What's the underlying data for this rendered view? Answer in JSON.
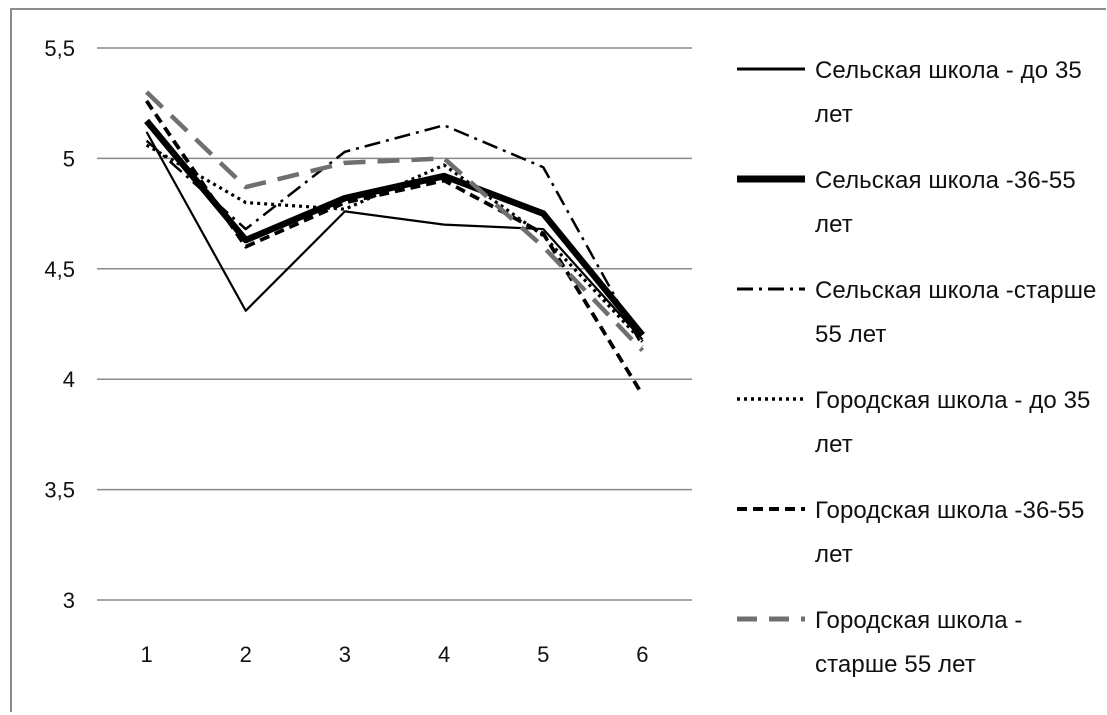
{
  "chart_data": {
    "type": "line",
    "x": [
      "1",
      "2",
      "3",
      "4",
      "5",
      "6"
    ],
    "ylim": [
      3,
      5.5
    ],
    "yticks": [
      "3",
      "3,5",
      "4",
      "4,5",
      "5",
      "5,5"
    ],
    "grid": true,
    "legend_position": "right",
    "series": [
      {
        "name": "Сельская школа - до 35 лет",
        "values": [
          5.12,
          4.31,
          4.76,
          4.7,
          4.68,
          4.18
        ],
        "color": "#000000",
        "style": "solid-thin"
      },
      {
        "name": "Сельская школа -36-55 лет",
        "values": [
          5.17,
          4.63,
          4.82,
          4.92,
          4.75,
          4.2
        ],
        "color": "#000000",
        "style": "solid-thick"
      },
      {
        "name": "Сельская школа -старше 55 лет",
        "values": [
          5.08,
          4.68,
          5.03,
          5.15,
          4.96,
          4.15
        ],
        "color": "#000000",
        "style": "dash-dot"
      },
      {
        "name": "Городская школа - до 35 лет",
        "values": [
          5.06,
          4.8,
          4.77,
          4.97,
          4.65,
          4.17
        ],
        "color": "#000000",
        "style": "dotted"
      },
      {
        "name": "Городская школа -36-55 лет",
        "values": [
          5.26,
          4.6,
          4.8,
          4.9,
          4.66,
          3.93
        ],
        "color": "#000000",
        "style": "dashed"
      },
      {
        "name": "Городская школа - старше 55 лет",
        "values": [
          5.3,
          4.87,
          4.98,
          5.0,
          4.6,
          4.13
        ],
        "color": "#6f6f6f",
        "style": "long-dash"
      }
    ]
  },
  "legend": {
    "items": [
      "Сельская школа - до 35 лет",
      "Сельская школа -36-55 лет",
      "Сельская школа -старше 55 лет",
      "Городская школа - до 35 лет",
      "Городская школа -36-55 лет",
      "Городская школа - старше 55 лет"
    ]
  }
}
